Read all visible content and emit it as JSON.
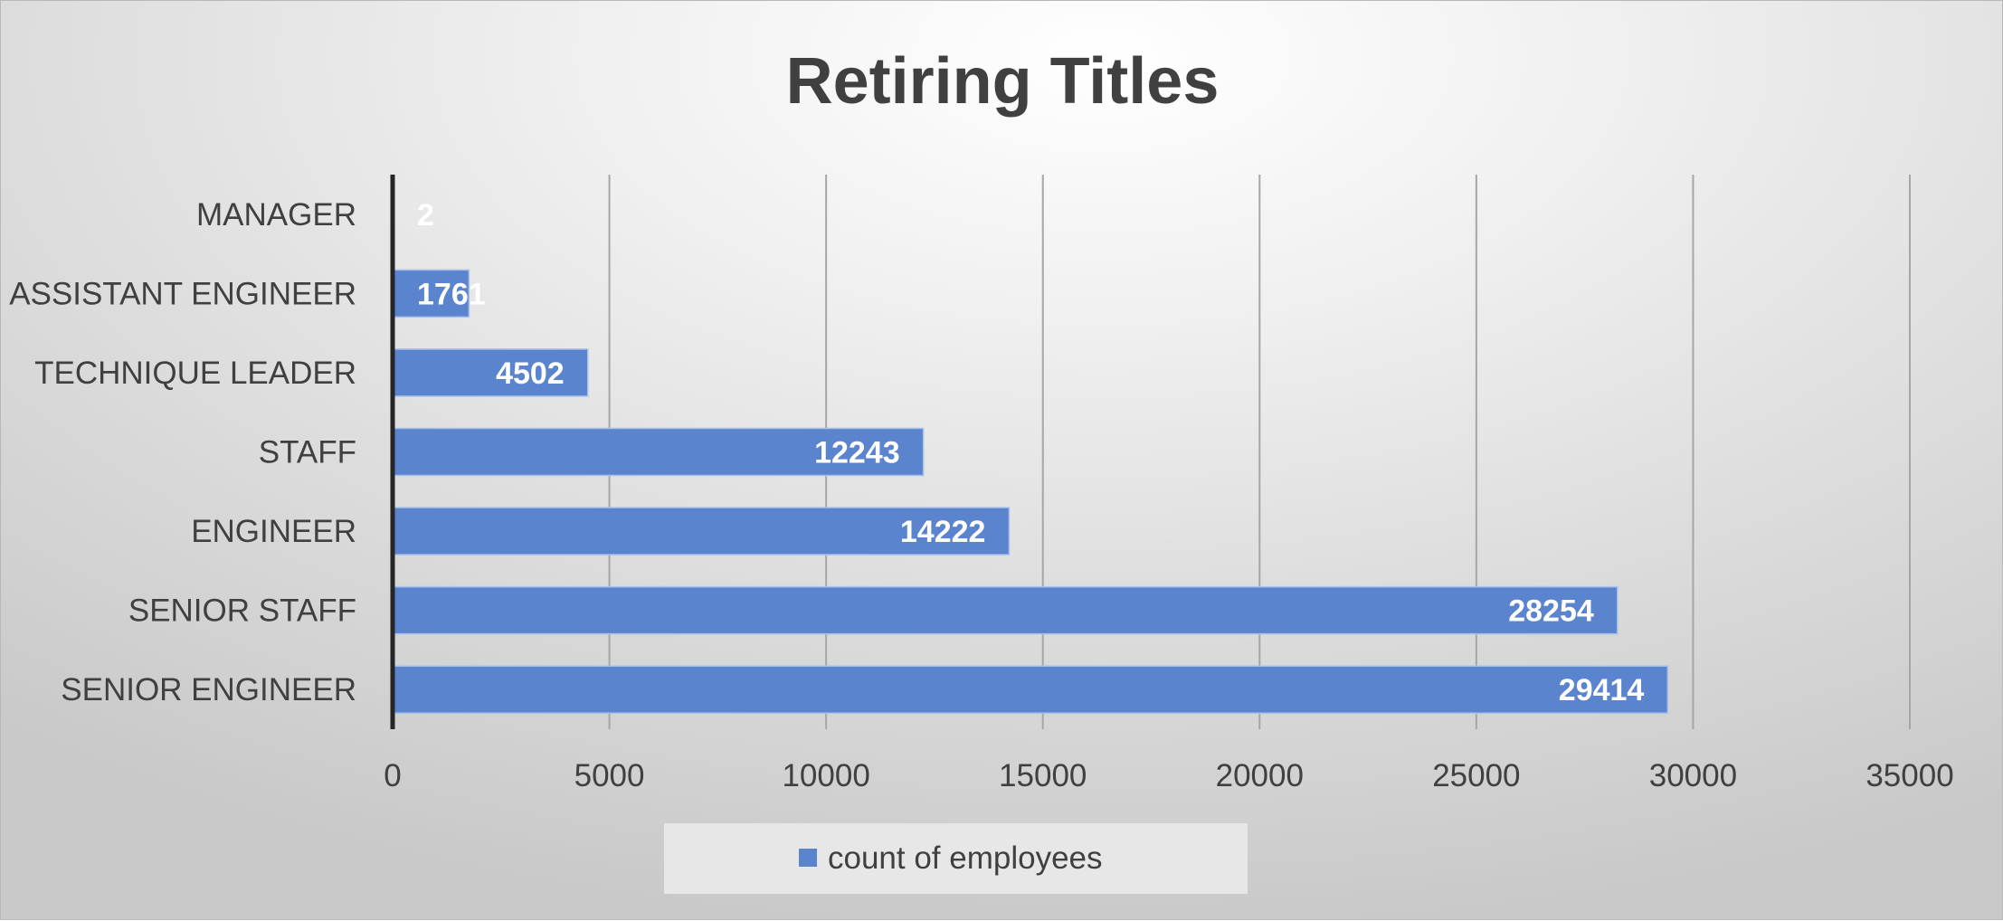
{
  "chart_data": {
    "type": "bar",
    "orientation": "horizontal",
    "title": "Retiring Titles",
    "categories": [
      "MANAGER",
      "ASSISTANT ENGINEER",
      "TECHNIQUE LEADER",
      "STAFF",
      "ENGINEER",
      "SENIOR STAFF",
      "SENIOR ENGINEER"
    ],
    "series": [
      {
        "name": "count of employees",
        "values": [
          2,
          1761,
          4502,
          12243,
          14222,
          28254,
          29414
        ]
      }
    ],
    "data_labels": [
      "2",
      "1761",
      "4502",
      "12243",
      "14222",
      "28254",
      "29414"
    ],
    "xlim": [
      0,
      35000
    ],
    "xticks": [
      0,
      5000,
      10000,
      15000,
      20000,
      25000,
      30000,
      35000
    ],
    "xtick_labels": [
      "0",
      "5000",
      "10000",
      "15000",
      "20000",
      "25000",
      "30000",
      "35000"
    ],
    "grid": "vertical",
    "legend_position": "bottom",
    "colors": {
      "bar": "#5b84cf",
      "bar_border": "#a9c0ea",
      "text": "#404040",
      "grid": "#a6a6a6",
      "axis": "#262626",
      "legend_box": "#e7e7e7"
    }
  }
}
